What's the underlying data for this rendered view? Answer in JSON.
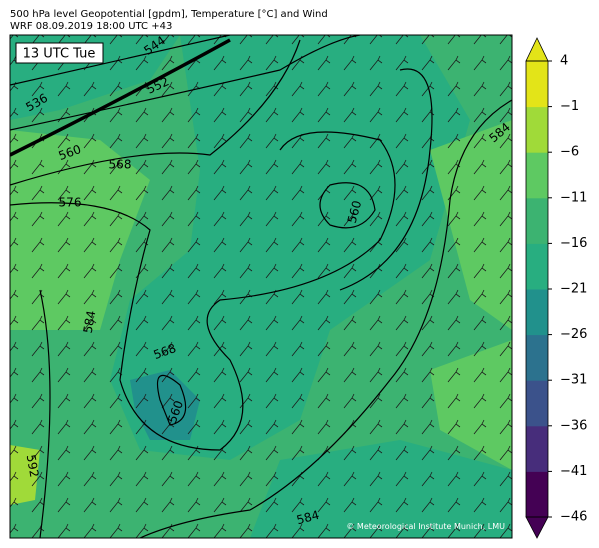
{
  "header": {
    "title": "500 hPa level Geopotential [gpdm], Temperature [°C] and Wind",
    "subtitle": "WRF 08.09.2019 18:00 UTC +43"
  },
  "map": {
    "time_label": "13 UTC Tue",
    "contour_labels": [
      "544",
      "552",
      "536",
      "560",
      "568",
      "576",
      "584",
      "560",
      "568",
      "560",
      "592",
      "584",
      "584"
    ],
    "credit": "© Meteorological Institute Munich, LMU"
  },
  "colorbar": {
    "lim": [
      -46,
      4
    ],
    "ticks": [
      4,
      {
        "value": -1,
        "label": "−1"
      },
      {
        "value": -6,
        "label": "−6"
      },
      {
        "value": -11,
        "label": "−11"
      },
      {
        "value": -16,
        "label": "−16"
      },
      {
        "value": -21,
        "label": "−21"
      },
      {
        "value": -26,
        "label": "−26"
      },
      {
        "value": -31,
        "label": "−31"
      },
      {
        "value": -36,
        "label": "−36"
      },
      {
        "value": -41,
        "label": "−41"
      },
      {
        "value": -46,
        "label": "−46"
      }
    ],
    "colors": [
      "#440154",
      "#472d7b",
      "#3b528b",
      "#2c728e",
      "#21918c",
      "#28ae80",
      "#3cb371",
      "#5ec962",
      "#a0da39",
      "#e3e418"
    ]
  }
}
